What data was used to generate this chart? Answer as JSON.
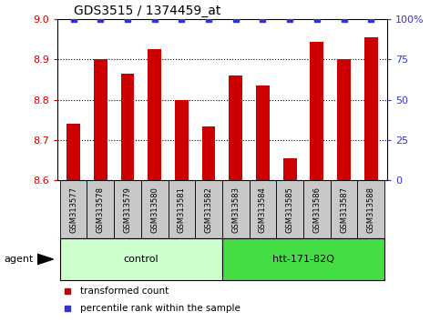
{
  "title": "GDS3515 / 1374459_at",
  "samples": [
    "GSM313577",
    "GSM313578",
    "GSM313579",
    "GSM313580",
    "GSM313581",
    "GSM313582",
    "GSM313583",
    "GSM313584",
    "GSM313585",
    "GSM313586",
    "GSM313587",
    "GSM313588"
  ],
  "values": [
    8.74,
    8.9,
    8.865,
    8.925,
    8.8,
    8.735,
    8.86,
    8.835,
    8.655,
    8.945,
    8.9,
    8.955
  ],
  "percentiles": [
    100,
    100,
    100,
    100,
    100,
    100,
    100,
    100,
    100,
    100,
    100,
    100
  ],
  "bar_color": "#cc0000",
  "dot_color": "#3333cc",
  "ylim_left": [
    8.6,
    9.0
  ],
  "ylim_right": [
    0,
    100
  ],
  "yticks_left": [
    8.6,
    8.7,
    8.8,
    8.9,
    9.0
  ],
  "yticks_right": [
    0,
    25,
    50,
    75,
    100
  ],
  "ytick_right_labels": [
    "0",
    "25",
    "50",
    "75",
    "100%"
  ],
  "groups": [
    {
      "label": "control",
      "start": 0,
      "end": 6,
      "color": "#ccffcc"
    },
    {
      "label": "htt-171-82Q",
      "start": 6,
      "end": 12,
      "color": "#44dd44"
    }
  ],
  "agent_label": "agent",
  "legend_items": [
    {
      "label": "transformed count",
      "color": "#cc0000"
    },
    {
      "label": "percentile rank within the sample",
      "color": "#3333cc"
    }
  ],
  "bar_width": 0.5,
  "baseline": 8.6,
  "tick_label_color_left": "#cc0000",
  "tick_label_color_right": "#3333cc",
  "bg_xtick": "#c8c8c8",
  "plot_bg": "#ffffff"
}
